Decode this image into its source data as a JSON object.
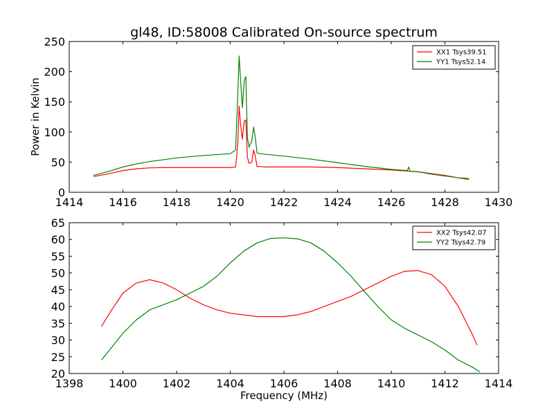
{
  "chart_data": [
    {
      "type": "line",
      "title": "gl48, ID:58008 Calibrated On-source spectrum",
      "xlabel": "",
      "ylabel": "Power in Kelvin",
      "xlim": [
        1414,
        1430
      ],
      "ylim": [
        0,
        250
      ],
      "xticks": [
        "1414",
        "1416",
        "1418",
        "1420",
        "1422",
        "1424",
        "1426",
        "1428",
        "1430"
      ],
      "yticks": [
        "0",
        "50",
        "100",
        "150",
        "200",
        "250"
      ],
      "legend_position": "top-right",
      "series": [
        {
          "name": "XX1 Tsys39.51",
          "color": "#ff0000",
          "x": [
            1414.9,
            1415.5,
            1416.0,
            1416.5,
            1417.0,
            1417.5,
            1418.0,
            1419.0,
            1420.0,
            1420.2,
            1420.28,
            1420.33,
            1420.38,
            1420.45,
            1420.52,
            1420.58,
            1420.64,
            1420.7,
            1420.8,
            1420.87,
            1420.93,
            1421.0,
            1421.3,
            1422.0,
            1423.0,
            1424.0,
            1425.0,
            1426.0,
            1427.0,
            1427.5,
            1428.0,
            1428.5,
            1428.9
          ],
          "y": [
            26,
            31,
            36,
            39,
            40.5,
            41,
            41,
            41,
            41,
            42,
            80,
            143,
            115,
            88,
            118,
            120,
            58,
            48,
            50,
            70,
            60,
            43,
            42,
            42,
            42,
            41,
            39,
            37,
            34,
            31,
            28,
            24,
            21
          ]
        },
        {
          "name": "YY1 Tsys52.14",
          "color": "#008000",
          "x": [
            1414.9,
            1415.5,
            1416.0,
            1416.5,
            1417.0,
            1417.5,
            1418.0,
            1419.0,
            1420.0,
            1420.2,
            1420.27,
            1420.33,
            1420.38,
            1420.45,
            1420.52,
            1420.58,
            1420.64,
            1420.7,
            1420.8,
            1420.87,
            1420.93,
            1421.0,
            1421.3,
            1422.0,
            1423.0,
            1424.0,
            1425.0,
            1426.0,
            1426.6,
            1426.65,
            1426.7,
            1427.0,
            1427.5,
            1428.0,
            1428.5,
            1428.9
          ],
          "y": [
            28,
            35,
            42,
            47,
            51,
            54,
            57,
            61,
            64,
            70,
            150,
            226,
            190,
            140,
            185,
            192,
            90,
            75,
            85,
            108,
            92,
            65,
            63,
            60,
            55,
            49,
            43,
            38,
            36,
            42,
            35,
            34,
            30,
            27,
            24,
            23
          ]
        }
      ]
    },
    {
      "type": "line",
      "title": "",
      "xlabel": "Frequency (MHz)",
      "ylabel": "",
      "xlim": [
        1398,
        1414
      ],
      "ylim": [
        20,
        65
      ],
      "xticks": [
        "1398",
        "1400",
        "1402",
        "1404",
        "1406",
        "1408",
        "1410",
        "1412",
        "1414"
      ],
      "yticks": [
        "20",
        "25",
        "30",
        "35",
        "40",
        "45",
        "50",
        "55",
        "60",
        "65"
      ],
      "legend_position": "top-right",
      "series": [
        {
          "name": "XX2 Tsys42.07",
          "color": "#ff0000",
          "x": [
            1399.2,
            1399.5,
            1400.0,
            1400.5,
            1401.0,
            1401.5,
            1402.0,
            1402.5,
            1403.0,
            1403.5,
            1404.0,
            1404.5,
            1405.0,
            1405.5,
            1406.0,
            1406.5,
            1407.0,
            1407.5,
            1408.0,
            1408.5,
            1409.0,
            1409.5,
            1410.0,
            1410.5,
            1411.0,
            1411.5,
            1412.0,
            1412.5,
            1413.0,
            1413.2
          ],
          "y": [
            34,
            38,
            44,
            47,
            48,
            47,
            45,
            42.5,
            40.5,
            39,
            38,
            37.5,
            37,
            37,
            37,
            37.5,
            38.5,
            40,
            41.5,
            43,
            45,
            47,
            49,
            50.5,
            50.7,
            49.5,
            46,
            40,
            32,
            28.5
          ]
        },
        {
          "name": "YY2 Tsys42.79",
          "color": "#008000",
          "x": [
            1399.2,
            1399.5,
            1400.0,
            1400.5,
            1401.0,
            1401.5,
            1402.0,
            1402.5,
            1403.0,
            1403.5,
            1404.0,
            1404.5,
            1405.0,
            1405.5,
            1406.0,
            1406.5,
            1407.0,
            1407.5,
            1408.0,
            1408.5,
            1409.0,
            1409.5,
            1410.0,
            1410.5,
            1411.0,
            1411.5,
            1412.0,
            1412.5,
            1413.0,
            1413.3
          ],
          "y": [
            24,
            27,
            32,
            36,
            39,
            40.5,
            42,
            44,
            46,
            49,
            53,
            56.5,
            59,
            60.3,
            60.5,
            60.2,
            59,
            56.5,
            53,
            49,
            44.5,
            40,
            36,
            33.5,
            31.5,
            29.5,
            27,
            24,
            22,
            20.5
          ]
        }
      ]
    }
  ]
}
